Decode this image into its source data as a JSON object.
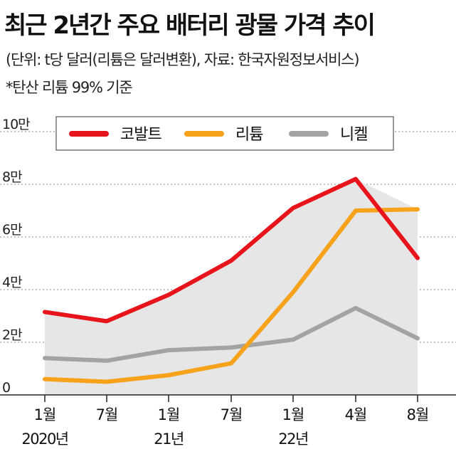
{
  "header": {
    "title": "최근 2년간 주요 배터리 광물 가격 추이",
    "unit_note": "(단위: t당 달러(리튬은 달러변환), 자료: 한국자원정보서비스)",
    "footnote": "*탄산 리튬 99% 기준"
  },
  "chart_data": {
    "type": "line",
    "title": "최근 2년간 주요 배터리 광물 가격 추이",
    "x": [
      "2020-01",
      "2020-07",
      "2021-01",
      "2021-07",
      "2022-01",
      "2022-04",
      "2022-08"
    ],
    "x_tick_labels": [
      {
        "month": "1월",
        "year": "2020년"
      },
      {
        "month": "7월",
        "year": ""
      },
      {
        "month": "1월",
        "year": "21년"
      },
      {
        "month": "7월",
        "year": ""
      },
      {
        "month": "1월",
        "year": "22년"
      },
      {
        "month": "4월",
        "year": ""
      },
      {
        "month": "8월",
        "year": ""
      }
    ],
    "y_ticks": [
      {
        "value": 0,
        "label": "0"
      },
      {
        "value": 20000,
        "label": "2만"
      },
      {
        "value": 40000,
        "label": "4만"
      },
      {
        "value": 60000,
        "label": "6만"
      },
      {
        "value": 80000,
        "label": "8만"
      },
      {
        "value": 100000,
        "label": "10만"
      }
    ],
    "ylim": [
      0,
      100000
    ],
    "grid": true,
    "legend_position": "top",
    "series": [
      {
        "name": "코발트",
        "color": "#e8141c",
        "values": [
          31500,
          28000,
          38000,
          51000,
          71000,
          82000,
          52000
        ]
      },
      {
        "name": "리튬",
        "color": "#f7a21b",
        "values": [
          6000,
          5000,
          7500,
          12000,
          39000,
          70000,
          70500
        ]
      },
      {
        "name": "니켈",
        "color": "#a3a3a3",
        "values": [
          14000,
          13000,
          17000,
          18000,
          21000,
          33000,
          21500
        ]
      }
    ],
    "area_fill_color": "#e6e6e6"
  }
}
